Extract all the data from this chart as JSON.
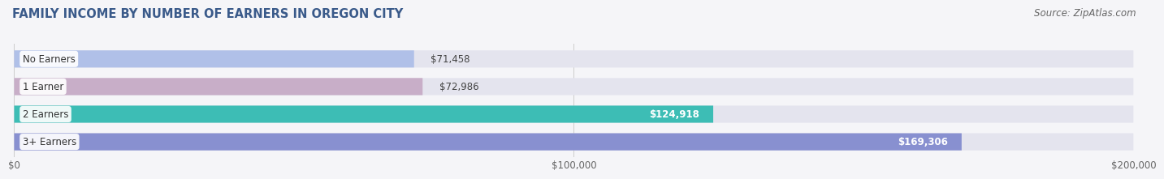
{
  "title": "FAMILY INCOME BY NUMBER OF EARNERS IN OREGON CITY",
  "source": "Source: ZipAtlas.com",
  "categories": [
    "No Earners",
    "1 Earner",
    "2 Earners",
    "3+ Earners"
  ],
  "values": [
    71458,
    72986,
    124918,
    169306
  ],
  "labels": [
    "$71,458",
    "$72,986",
    "$124,918",
    "$169,306"
  ],
  "bar_colors": [
    "#b0c0e8",
    "#c8aec8",
    "#3dbdb5",
    "#8890d0"
  ],
  "bar_bg_color": "#e4e4ee",
  "xlim": [
    0,
    200000
  ],
  "xticks": [
    0,
    100000,
    200000
  ],
  "xtick_labels": [
    "$0",
    "$100,000",
    "$200,000"
  ],
  "title_fontsize": 10.5,
  "label_fontsize": 8.5,
  "source_fontsize": 8.5,
  "background_color": "#f5f5f8",
  "bar_height": 0.62,
  "label_color_inside": "#ffffff",
  "label_color_outside": "#444444",
  "category_label_color": "#333333",
  "inside_threshold": 0.55
}
